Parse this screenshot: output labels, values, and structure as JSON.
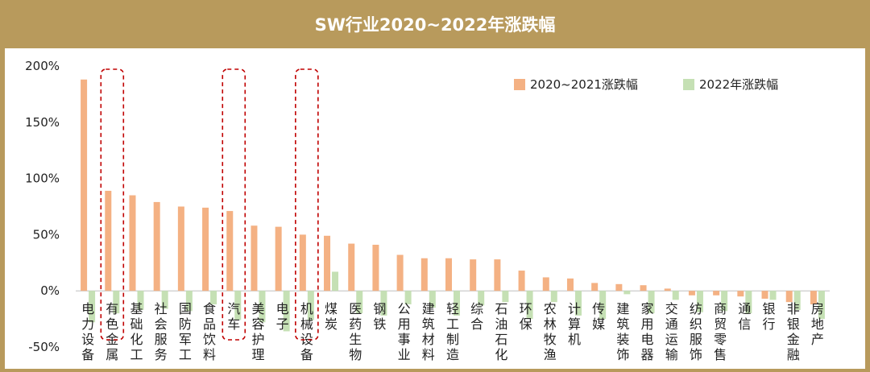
{
  "title": "SW行业2020~2022年涨跌幅",
  "colors": {
    "frame": "#b89a5c",
    "series_2020_2021": "#f4b183",
    "series_2022": "#c5e0b4",
    "highlight": "#c00000"
  },
  "chart_data": {
    "type": "bar",
    "title": "SW行业2020~2022年涨跌幅",
    "xlabel": "",
    "ylabel": "",
    "ylim": [
      -50,
      200
    ],
    "yticks": [
      "200%",
      "150%",
      "100%",
      "50%",
      "0%",
      "-50%"
    ],
    "ytick_values": [
      200,
      150,
      100,
      50,
      0,
      -50
    ],
    "legend_position": "top-right",
    "categories": [
      "电力设备",
      "有色金属",
      "基础化工",
      "社会服务",
      "国防军工",
      "食品饮料",
      "汽车",
      "美容护理",
      "电子",
      "机械设备",
      "煤炭",
      "医药生物",
      "钢铁",
      "公用事业",
      "建筑材料",
      "轻工制造",
      "综合",
      "石油石化",
      "环保",
      "农林牧渔",
      "计算机",
      "传媒",
      "建筑装饰",
      "家用电器",
      "交通运输",
      "纺织服饰",
      "商贸零售",
      "通信",
      "银行",
      "非银金融",
      "房地产"
    ],
    "series": [
      {
        "name": "2020~2021涨跌幅",
        "values": [
          188,
          89,
          85,
          79,
          75,
          74,
          71,
          58,
          57,
          50,
          49,
          42,
          41,
          32,
          29,
          29,
          28,
          28,
          18,
          12,
          11,
          7,
          6,
          5,
          2,
          -4,
          -4,
          -5,
          -7,
          -10,
          -12
        ]
      },
      {
        "name": "2022年涨跌幅",
        "values": [
          -28,
          -20,
          -17,
          -16,
          -18,
          -12,
          -26,
          -28,
          -36,
          -26,
          17,
          -20,
          -22,
          -12,
          -15,
          -22,
          -13,
          -10,
          -25,
          -10,
          -22,
          -25,
          -3,
          -20,
          -8,
          -19,
          -18,
          -20,
          -8,
          -17,
          -25
        ]
      }
    ],
    "highlighted_categories": [
      "有色金属",
      "汽车",
      "机械设备"
    ]
  }
}
